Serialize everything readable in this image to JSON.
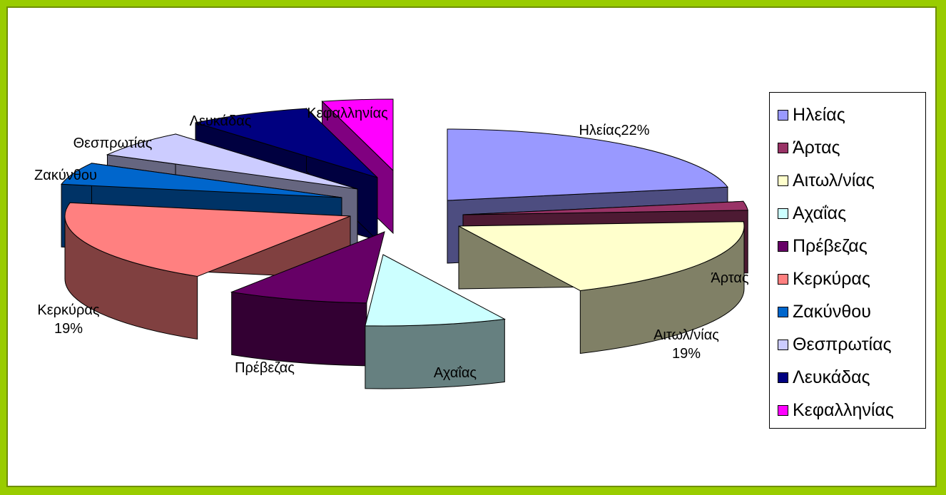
{
  "chart_data": {
    "type": "pie",
    "title": "",
    "categories": [
      "Ηλείας",
      "Άρτας",
      "Αιτωλ/νίας",
      "Αχαΐας",
      "Πρέβεζας",
      "Κερκύρας",
      "Ζακύνθου",
      "Θεσπρωτίας",
      "Λευκάδας",
      "Κεφαλληνίας"
    ],
    "values": [
      22,
      2,
      19,
      8,
      8,
      19,
      5,
      6,
      7,
      4
    ],
    "colors": [
      "#9999ff",
      "#993366",
      "#ffffcc",
      "#ccffff",
      "#660066",
      "#ff8080",
      "#0066cc",
      "#ccccff",
      "#000080",
      "#ff00ff"
    ],
    "legend_position": "right",
    "three_d": true,
    "exploded": true,
    "slice_labels": [
      {
        "name": "Ηλείας",
        "value": "22%"
      },
      {
        "name": "Άρτας",
        "value": ""
      },
      {
        "name": "Αιτωλ/νίας",
        "value": "19%"
      },
      {
        "name": "Αχαΐας",
        "value": ""
      },
      {
        "name": "Πρέβεζας",
        "value": ""
      },
      {
        "name": "Κερκύρας",
        "value": "19%"
      },
      {
        "name": "Ζακύνθου",
        "value": ""
      },
      {
        "name": "Θεσπρωτίας",
        "value": ""
      },
      {
        "name": "Λευκάδας",
        "value": ""
      },
      {
        "name": "Κεφαλληνίας",
        "value": ""
      }
    ]
  }
}
